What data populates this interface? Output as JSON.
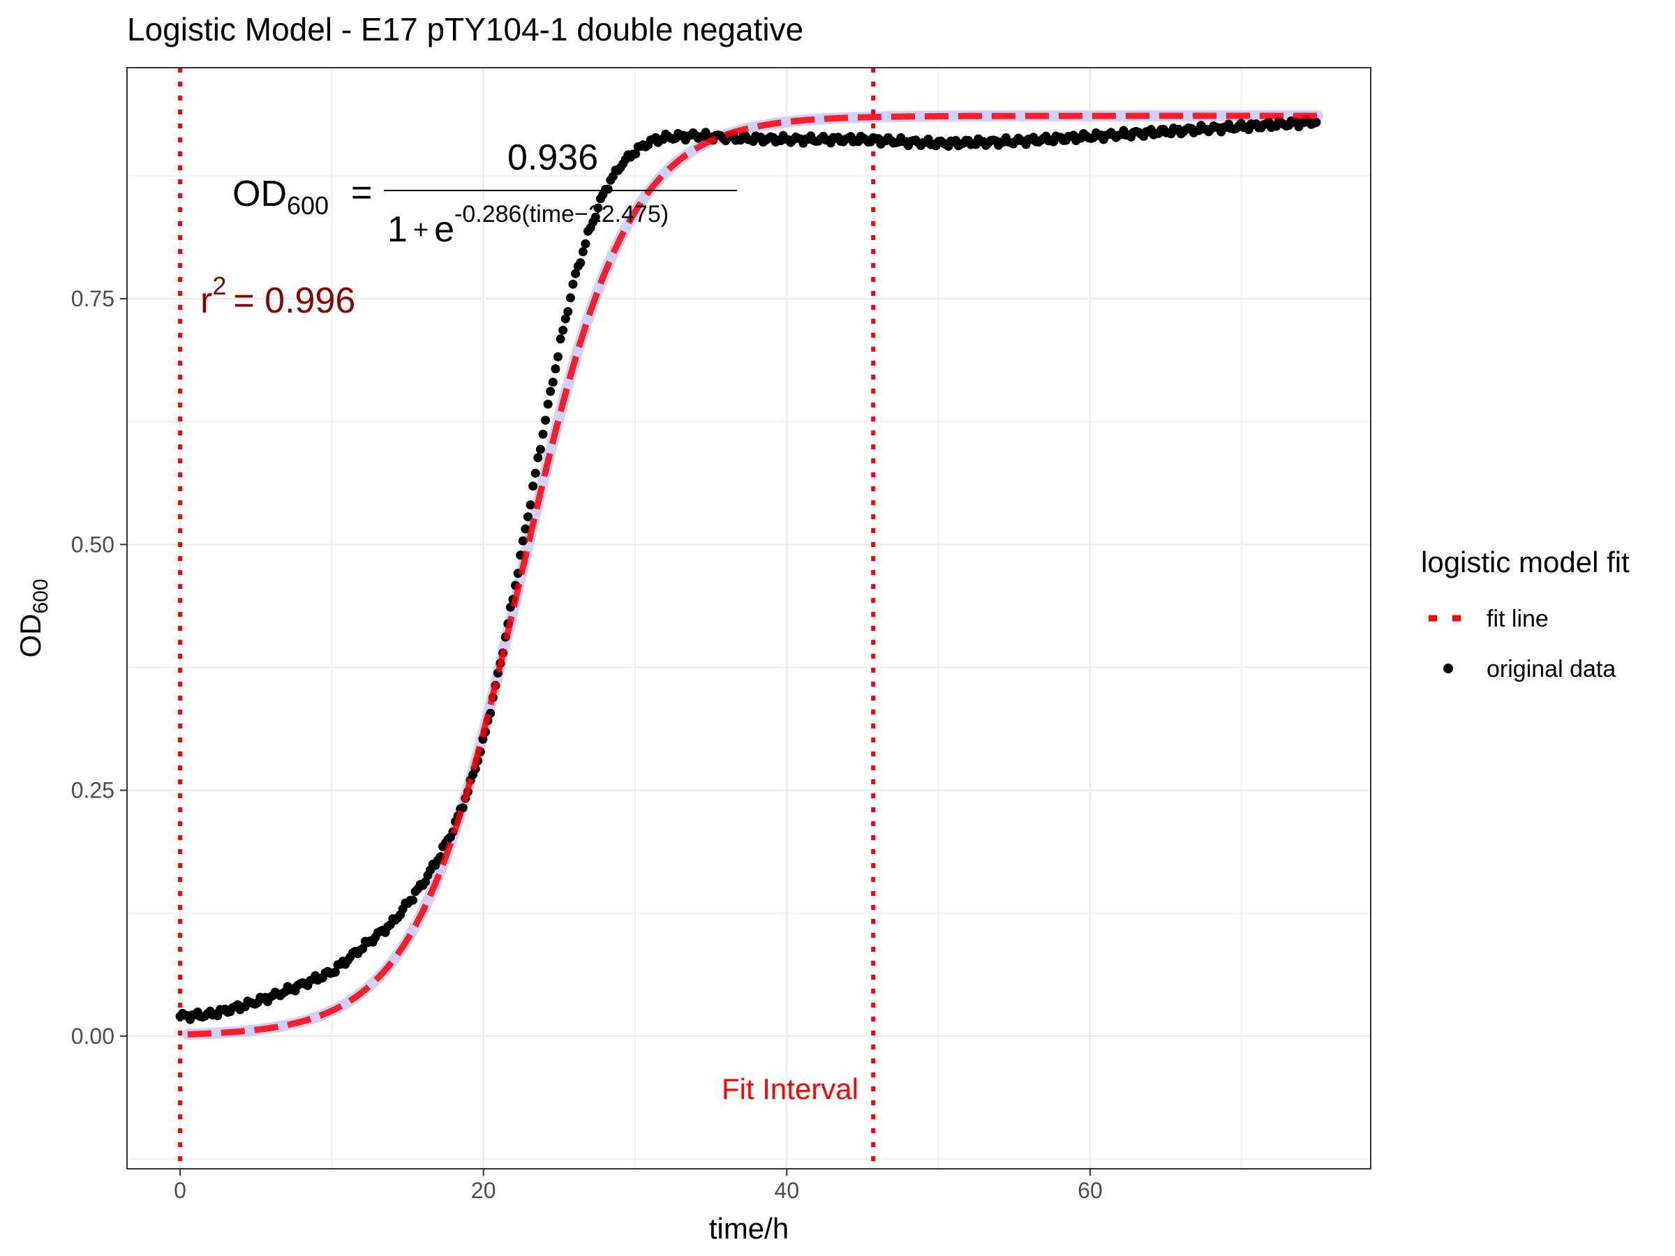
{
  "title": "Logistic Model -  E17 pTY104-1 double negative",
  "equation": {
    "lhs_main": "OD",
    "lhs_sub": "600",
    "equals": "=",
    "numerator": "0.936",
    "den_one": "1",
    "den_plus": "+",
    "den_e": "e",
    "exponent": "-0.286(time−22.475)"
  },
  "r2": {
    "base": "r",
    "sup": "2",
    "rest": "= 0.996"
  },
  "fit_interval_label": "Fit Interval",
  "legend": {
    "title": "logistic model fit",
    "items": [
      {
        "label": "fit line",
        "color": "#ff0000"
      },
      {
        "label": "original data",
        "color": "#000000"
      }
    ]
  },
  "colors": {
    "fit_line": "#ff0000",
    "data_points": "#000000",
    "band": "#ccccff",
    "interval_lines": "#ff0000",
    "r2_text": "#8b0000",
    "annotation_text": "#ff0000"
  },
  "chart_data": {
    "type": "scatter",
    "title": "Logistic Model -  E17 pTY104-1 double negative",
    "xlabel": "time/h",
    "ylabel_main": "OD",
    "ylabel_sub": "600",
    "xlim": [
      -3.5,
      78.5
    ],
    "ylim": [
      -0.135,
      0.985
    ],
    "x_ticks": [
      0,
      20,
      40,
      60
    ],
    "x_tick_labels": [
      "0",
      "20",
      "40",
      "60"
    ],
    "y_ticks": [
      0.0,
      0.25,
      0.5,
      0.75
    ],
    "y_tick_labels": [
      "0.00",
      "0.25",
      "0.50",
      "0.75"
    ],
    "grid": true,
    "legend_position": "right",
    "fit_interval": [
      0,
      45.7
    ],
    "model": {
      "A": 0.936,
      "mu": 0.286,
      "lambda": 22.475
    },
    "series": [
      {
        "name": "original data",
        "kind": "points",
        "x": [
          0,
          2,
          4,
          6,
          8,
          10,
          12,
          14,
          16,
          17,
          18,
          19,
          20,
          21,
          22,
          23,
          24,
          25,
          26,
          27,
          28,
          29,
          30,
          31,
          32,
          33,
          34,
          35,
          37,
          40,
          45,
          50,
          55,
          60,
          65,
          70,
          75
        ],
        "y": [
          0.02,
          0.022,
          0.03,
          0.04,
          0.052,
          0.065,
          0.09,
          0.115,
          0.155,
          0.18,
          0.21,
          0.25,
          0.3,
          0.37,
          0.45,
          0.535,
          0.62,
          0.7,
          0.77,
          0.82,
          0.86,
          0.885,
          0.9,
          0.91,
          0.914,
          0.915,
          0.916,
          0.915,
          0.913,
          0.912,
          0.912,
          0.908,
          0.91,
          0.915,
          0.92,
          0.925,
          0.93
        ]
      },
      {
        "name": "fit line",
        "kind": "line",
        "x_range": [
          0.5,
          75
        ],
        "equation": "0.936/(1+exp(-0.286*(time-22.475)))"
      }
    ]
  }
}
